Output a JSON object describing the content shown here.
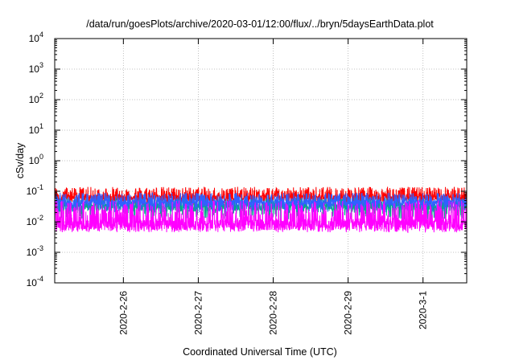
{
  "chart_data": {
    "type": "line",
    "title": "/data/run/goesPlots/archive/2020-03-01/12:00/flux/../bryn/5daysEarthData.plot",
    "xlabel": "Coordinated Universal Time (UTC)",
    "ylabel": "cSv/day",
    "yscale": "log",
    "ylim": [
      0.0001,
      10000
    ],
    "yticks": [
      {
        "base": "10",
        "exp": "-4"
      },
      {
        "base": "10",
        "exp": "-3"
      },
      {
        "base": "10",
        "exp": "-2"
      },
      {
        "base": "10",
        "exp": "-1"
      },
      {
        "base": "10",
        "exp": "0"
      },
      {
        "base": "10",
        "exp": "1"
      },
      {
        "base": "10",
        "exp": "2"
      },
      {
        "base": "10",
        "exp": "3"
      },
      {
        "base": "10",
        "exp": "4"
      }
    ],
    "xlim": [
      "2020-02-25 02:00",
      "2020-03-01 14:00"
    ],
    "xticks": [
      "2020-2-26",
      "2020-2-27",
      "2020-2-28",
      "2020-2-29",
      "2020-3-1"
    ],
    "xtick_dates": [
      "2020-02-26",
      "2020-02-27",
      "2020-02-28",
      "2020-02-29",
      "2020-03-01"
    ],
    "grid": true,
    "series": [
      {
        "color": "#ff0000",
        "low": 0.035,
        "high": 0.14,
        "typical": 0.06
      },
      {
        "color": "#00aa88",
        "low": 0.012,
        "high": 0.06,
        "typical": 0.03
      },
      {
        "color": "#3060ff",
        "low": 0.02,
        "high": 0.09,
        "typical": 0.04
      },
      {
        "color": "#ff00ff",
        "low": 0.0045,
        "high": 0.05,
        "typical": 0.008
      }
    ]
  }
}
